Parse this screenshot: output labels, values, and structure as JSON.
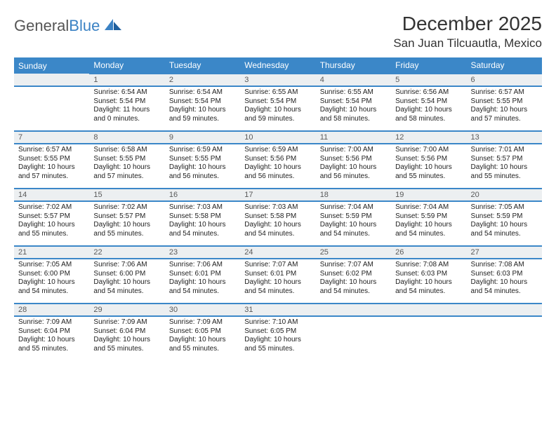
{
  "brand": {
    "name1": "General",
    "name2": "Blue"
  },
  "title": "December 2025",
  "location": "San Juan Tilcuautla, Mexico",
  "colors": {
    "header_bg": "#3b87c8",
    "header_text": "#ffffff",
    "daynum_bg": "#eceff1",
    "rule": "#3b87c8",
    "text": "#222222"
  },
  "weekdays": [
    "Sunday",
    "Monday",
    "Tuesday",
    "Wednesday",
    "Thursday",
    "Friday",
    "Saturday"
  ],
  "first_weekday_index": 1,
  "days": [
    {
      "n": 1,
      "sunrise": "6:54 AM",
      "sunset": "5:54 PM",
      "daylight": "11 hours and 0 minutes."
    },
    {
      "n": 2,
      "sunrise": "6:54 AM",
      "sunset": "5:54 PM",
      "daylight": "10 hours and 59 minutes."
    },
    {
      "n": 3,
      "sunrise": "6:55 AM",
      "sunset": "5:54 PM",
      "daylight": "10 hours and 59 minutes."
    },
    {
      "n": 4,
      "sunrise": "6:55 AM",
      "sunset": "5:54 PM",
      "daylight": "10 hours and 58 minutes."
    },
    {
      "n": 5,
      "sunrise": "6:56 AM",
      "sunset": "5:54 PM",
      "daylight": "10 hours and 58 minutes."
    },
    {
      "n": 6,
      "sunrise": "6:57 AM",
      "sunset": "5:55 PM",
      "daylight": "10 hours and 57 minutes."
    },
    {
      "n": 7,
      "sunrise": "6:57 AM",
      "sunset": "5:55 PM",
      "daylight": "10 hours and 57 minutes."
    },
    {
      "n": 8,
      "sunrise": "6:58 AM",
      "sunset": "5:55 PM",
      "daylight": "10 hours and 57 minutes."
    },
    {
      "n": 9,
      "sunrise": "6:59 AM",
      "sunset": "5:55 PM",
      "daylight": "10 hours and 56 minutes."
    },
    {
      "n": 10,
      "sunrise": "6:59 AM",
      "sunset": "5:56 PM",
      "daylight": "10 hours and 56 minutes."
    },
    {
      "n": 11,
      "sunrise": "7:00 AM",
      "sunset": "5:56 PM",
      "daylight": "10 hours and 56 minutes."
    },
    {
      "n": 12,
      "sunrise": "7:00 AM",
      "sunset": "5:56 PM",
      "daylight": "10 hours and 55 minutes."
    },
    {
      "n": 13,
      "sunrise": "7:01 AM",
      "sunset": "5:57 PM",
      "daylight": "10 hours and 55 minutes."
    },
    {
      "n": 14,
      "sunrise": "7:02 AM",
      "sunset": "5:57 PM",
      "daylight": "10 hours and 55 minutes."
    },
    {
      "n": 15,
      "sunrise": "7:02 AM",
      "sunset": "5:57 PM",
      "daylight": "10 hours and 55 minutes."
    },
    {
      "n": 16,
      "sunrise": "7:03 AM",
      "sunset": "5:58 PM",
      "daylight": "10 hours and 54 minutes."
    },
    {
      "n": 17,
      "sunrise": "7:03 AM",
      "sunset": "5:58 PM",
      "daylight": "10 hours and 54 minutes."
    },
    {
      "n": 18,
      "sunrise": "7:04 AM",
      "sunset": "5:59 PM",
      "daylight": "10 hours and 54 minutes."
    },
    {
      "n": 19,
      "sunrise": "7:04 AM",
      "sunset": "5:59 PM",
      "daylight": "10 hours and 54 minutes."
    },
    {
      "n": 20,
      "sunrise": "7:05 AM",
      "sunset": "5:59 PM",
      "daylight": "10 hours and 54 minutes."
    },
    {
      "n": 21,
      "sunrise": "7:05 AM",
      "sunset": "6:00 PM",
      "daylight": "10 hours and 54 minutes."
    },
    {
      "n": 22,
      "sunrise": "7:06 AM",
      "sunset": "6:00 PM",
      "daylight": "10 hours and 54 minutes."
    },
    {
      "n": 23,
      "sunrise": "7:06 AM",
      "sunset": "6:01 PM",
      "daylight": "10 hours and 54 minutes."
    },
    {
      "n": 24,
      "sunrise": "7:07 AM",
      "sunset": "6:01 PM",
      "daylight": "10 hours and 54 minutes."
    },
    {
      "n": 25,
      "sunrise": "7:07 AM",
      "sunset": "6:02 PM",
      "daylight": "10 hours and 54 minutes."
    },
    {
      "n": 26,
      "sunrise": "7:08 AM",
      "sunset": "6:03 PM",
      "daylight": "10 hours and 54 minutes."
    },
    {
      "n": 27,
      "sunrise": "7:08 AM",
      "sunset": "6:03 PM",
      "daylight": "10 hours and 54 minutes."
    },
    {
      "n": 28,
      "sunrise": "7:09 AM",
      "sunset": "6:04 PM",
      "daylight": "10 hours and 55 minutes."
    },
    {
      "n": 29,
      "sunrise": "7:09 AM",
      "sunset": "6:04 PM",
      "daylight": "10 hours and 55 minutes."
    },
    {
      "n": 30,
      "sunrise": "7:09 AM",
      "sunset": "6:05 PM",
      "daylight": "10 hours and 55 minutes."
    },
    {
      "n": 31,
      "sunrise": "7:10 AM",
      "sunset": "6:05 PM",
      "daylight": "10 hours and 55 minutes."
    }
  ],
  "labels": {
    "sunrise": "Sunrise:",
    "sunset": "Sunset:",
    "daylight": "Daylight:"
  }
}
